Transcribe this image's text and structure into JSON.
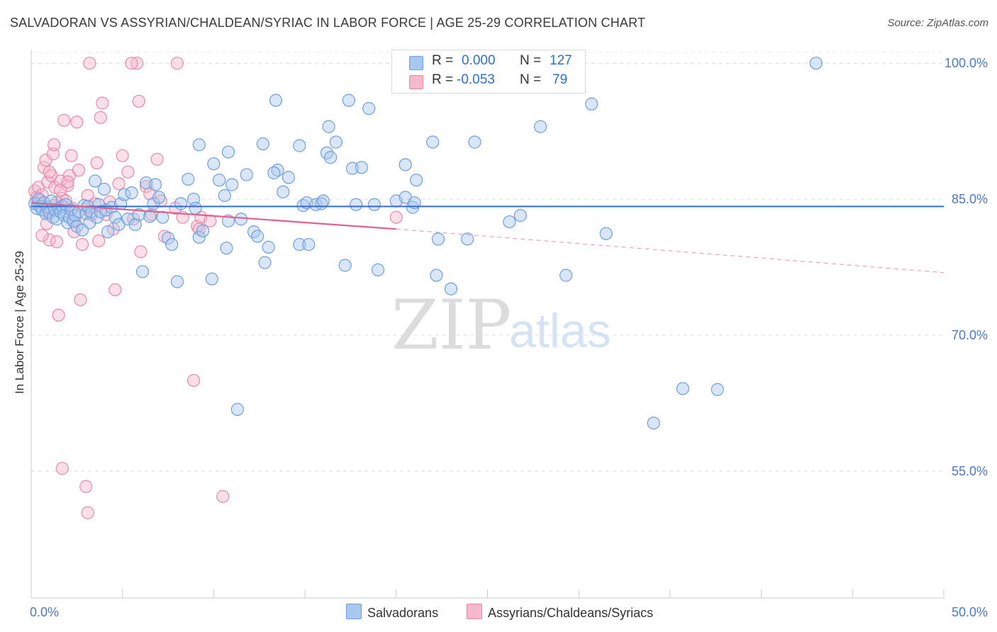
{
  "title": "SALVADORAN VS ASSYRIAN/CHALDEAN/SYRIAC IN LABOR FORCE | AGE 25-29 CORRELATION CHART",
  "source": "Source: ZipAtlas.com",
  "legend": {
    "blue_r_label": "R =",
    "blue_r_value": "0.000",
    "blue_n_label": "N =",
    "blue_n_value": "127",
    "pink_r_label": "R =",
    "pink_r_value": "-0.053",
    "pink_n_label": "N =",
    "pink_n_value": "79"
  },
  "bottom_legend": {
    "blue_label": "Salvadorans",
    "pink_label": "Assyrians/Chaldeans/Syriacs"
  },
  "colors": {
    "blue_fill": "#a8c8f0",
    "blue_stroke": "#6f9fdc",
    "blue_line": "#2f6fd0",
    "pink_fill": "#f6b8cb",
    "pink_stroke": "#e58aa8",
    "pink_line": "#e0628c",
    "tick_color": "#4a7bc8"
  },
  "watermark": {
    "zip": "ZIP",
    "atlas": "atlas"
  },
  "chart_data": {
    "type": "scatter",
    "title": "SALVADORAN VS ASSYRIAN/CHALDEAN/SYRIAC IN LABOR FORCE | AGE 25-29 CORRELATION CHART",
    "xlabel": "",
    "ylabel": "In Labor Force | Age 25-29",
    "xlim": [
      0,
      50
    ],
    "ylim": [
      41,
      101.5
    ],
    "x_tick_labels": [
      "0.0%",
      "50.0%"
    ],
    "y_ticks": [
      55,
      70,
      85,
      100
    ],
    "y_tick_labels": [
      "55.0%",
      "70.0%",
      "85.0%",
      "100.0%"
    ],
    "series": [
      {
        "name": "Salvadorans",
        "r": 0.0,
        "n": 127,
        "trend": {
          "x": [
            0,
            50
          ],
          "y": [
            84.2,
            84.2
          ]
        },
        "points": [
          [
            0.2,
            84.5
          ],
          [
            0.3,
            84.0
          ],
          [
            0.4,
            85.0
          ],
          [
            0.5,
            84.2
          ],
          [
            0.6,
            83.8
          ],
          [
            0.7,
            84.6
          ],
          [
            0.8,
            83.4
          ],
          [
            0.9,
            84.1
          ],
          [
            1.0,
            83.5
          ],
          [
            1.1,
            84.8
          ],
          [
            1.2,
            83.0
          ],
          [
            1.3,
            83.8
          ],
          [
            1.4,
            82.8
          ],
          [
            1.5,
            84.0
          ],
          [
            1.6,
            83.6
          ],
          [
            1.7,
            84.2
          ],
          [
            1.8,
            83.2
          ],
          [
            1.9,
            84.4
          ],
          [
            2.0,
            82.4
          ],
          [
            2.1,
            83.0
          ],
          [
            2.2,
            83.8
          ],
          [
            2.3,
            82.6
          ],
          [
            2.4,
            83.2
          ],
          [
            2.5,
            82.0
          ],
          [
            2.6,
            83.6
          ],
          [
            2.8,
            81.6
          ],
          [
            2.9,
            84.3
          ],
          [
            3.0,
            83.4
          ],
          [
            3.1,
            84.2
          ],
          [
            3.2,
            82.4
          ],
          [
            3.3,
            83.6
          ],
          [
            3.5,
            87.0
          ],
          [
            3.6,
            83.0
          ],
          [
            3.7,
            84.4
          ],
          [
            3.8,
            83.6
          ],
          [
            4.0,
            86.1
          ],
          [
            4.1,
            83.8
          ],
          [
            4.2,
            81.4
          ],
          [
            4.4,
            84.1
          ],
          [
            4.6,
            83.0
          ],
          [
            4.8,
            82.2
          ],
          [
            4.9,
            84.5
          ],
          [
            5.1,
            85.5
          ],
          [
            5.3,
            82.8
          ],
          [
            5.5,
            85.7
          ],
          [
            5.7,
            82.2
          ],
          [
            5.9,
            83.3
          ],
          [
            6.1,
            77.0
          ],
          [
            6.3,
            86.8
          ],
          [
            6.5,
            83.1
          ],
          [
            6.7,
            84.5
          ],
          [
            6.8,
            86.6
          ],
          [
            7.0,
            85.2
          ],
          [
            7.2,
            83.0
          ],
          [
            7.5,
            80.7
          ],
          [
            7.7,
            80.0
          ],
          [
            8.0,
            75.9
          ],
          [
            8.2,
            84.5
          ],
          [
            8.6,
            87.2
          ],
          [
            8.9,
            85.0
          ],
          [
            9.0,
            84.0
          ],
          [
            9.2,
            80.8
          ],
          [
            9.4,
            81.5
          ],
          [
            9.9,
            76.2
          ],
          [
            10.0,
            88.9
          ],
          [
            10.3,
            87.1
          ],
          [
            10.6,
            85.4
          ],
          [
            10.7,
            79.6
          ],
          [
            10.8,
            82.6
          ],
          [
            11.0,
            86.6
          ],
          [
            11.3,
            61.8
          ],
          [
            11.5,
            82.8
          ],
          [
            11.8,
            87.7
          ],
          [
            12.2,
            81.4
          ],
          [
            12.4,
            80.9
          ],
          [
            12.8,
            78.0
          ],
          [
            13.0,
            79.7
          ],
          [
            12.7,
            91.1
          ],
          [
            13.5,
            88.2
          ],
          [
            13.8,
            85.8
          ],
          [
            14.1,
            87.4
          ],
          [
            14.7,
            80.0
          ],
          [
            14.9,
            84.3
          ],
          [
            15.1,
            84.6
          ],
          [
            15.2,
            80.0
          ],
          [
            15.6,
            84.4
          ],
          [
            15.9,
            84.5
          ],
          [
            16.0,
            84.8
          ],
          [
            16.2,
            90.1
          ],
          [
            16.4,
            89.6
          ],
          [
            17.2,
            77.7
          ],
          [
            17.6,
            88.4
          ],
          [
            17.8,
            84.4
          ],
          [
            18.1,
            88.5
          ],
          [
            18.5,
            95.0
          ],
          [
            18.8,
            84.4
          ],
          [
            19.0,
            77.2
          ],
          [
            20.0,
            84.8
          ],
          [
            20.5,
            85.2
          ],
          [
            20.5,
            88.8
          ],
          [
            20.9,
            84.1
          ],
          [
            21.0,
            84.6
          ],
          [
            22.2,
            76.6
          ],
          [
            22.3,
            80.6
          ],
          [
            23.0,
            75.1
          ],
          [
            23.9,
            80.6
          ],
          [
            24.3,
            91.3
          ],
          [
            26.2,
            82.5
          ],
          [
            26.8,
            83.2
          ],
          [
            27.9,
            93.0
          ],
          [
            29.3,
            76.6
          ],
          [
            30.7,
            95.5
          ],
          [
            31.5,
            81.2
          ],
          [
            35.7,
            64.1
          ],
          [
            37.6,
            64.0
          ],
          [
            34.1,
            60.3
          ],
          [
            43.0,
            100.0
          ],
          [
            16.7,
            91.3
          ],
          [
            14.7,
            90.9
          ],
          [
            13.4,
            95.9
          ],
          [
            9.2,
            91.0
          ],
          [
            21.1,
            87.1
          ],
          [
            22.0,
            91.3
          ],
          [
            17.4,
            95.9
          ],
          [
            10.8,
            90.2
          ],
          [
            16.3,
            93.0
          ],
          [
            13.3,
            87.9
          ]
        ]
      },
      {
        "name": "Assyrians/Chaldeans/Syriacs",
        "r": -0.053,
        "n": 79,
        "trend": {
          "x": [
            0,
            20
          ],
          "y": [
            84.6,
            81.7
          ]
        },
        "trend_extended": {
          "x": [
            20,
            50
          ],
          "y": [
            81.7,
            76.9
          ]
        },
        "points": [
          [
            0.2,
            85.9
          ],
          [
            0.3,
            85.2
          ],
          [
            0.35,
            84.4
          ],
          [
            0.4,
            86.3
          ],
          [
            0.5,
            84.9
          ],
          [
            0.6,
            85.5
          ],
          [
            0.7,
            88.5
          ],
          [
            0.8,
            89.3
          ],
          [
            0.85,
            82.3
          ],
          [
            0.9,
            86.9
          ],
          [
            1.0,
            80.5
          ],
          [
            1.05,
            83.6
          ],
          [
            1.1,
            87.6
          ],
          [
            1.2,
            90.0
          ],
          [
            1.25,
            91.0
          ],
          [
            1.3,
            86.3
          ],
          [
            1.4,
            80.3
          ],
          [
            1.5,
            72.2
          ],
          [
            1.6,
            87.0
          ],
          [
            1.7,
            85.1
          ],
          [
            1.8,
            93.7
          ],
          [
            1.9,
            84.8
          ],
          [
            2.0,
            86.5
          ],
          [
            2.1,
            87.6
          ],
          [
            2.2,
            89.8
          ],
          [
            2.25,
            84.0
          ],
          [
            2.35,
            81.4
          ],
          [
            2.5,
            93.5
          ],
          [
            2.6,
            88.2
          ],
          [
            2.7,
            73.9
          ],
          [
            2.8,
            80.0
          ],
          [
            3.0,
            83.9
          ],
          [
            3.1,
            85.4
          ],
          [
            3.3,
            83.3
          ],
          [
            3.5,
            84.5
          ],
          [
            3.6,
            89.0
          ],
          [
            3.8,
            94.0
          ],
          [
            3.9,
            95.6
          ],
          [
            4.1,
            83.3
          ],
          [
            4.3,
            84.7
          ],
          [
            4.5,
            81.7
          ],
          [
            4.6,
            75.0
          ],
          [
            4.8,
            86.7
          ],
          [
            5.0,
            89.8
          ],
          [
            5.3,
            88.0
          ],
          [
            5.6,
            82.8
          ],
          [
            5.8,
            100.0
          ],
          [
            5.9,
            95.8
          ],
          [
            6.0,
            79.2
          ],
          [
            6.3,
            86.4
          ],
          [
            6.5,
            85.6
          ],
          [
            6.6,
            83.3
          ],
          [
            6.9,
            89.4
          ],
          [
            7.1,
            84.8
          ],
          [
            7.3,
            80.9
          ],
          [
            7.9,
            84.0
          ],
          [
            8.0,
            100.0
          ],
          [
            8.3,
            83.0
          ],
          [
            9.1,
            82.0
          ],
          [
            9.2,
            81.7
          ],
          [
            9.3,
            83.0
          ],
          [
            9.8,
            82.6
          ],
          [
            3.2,
            100.0
          ],
          [
            1.7,
            55.3
          ],
          [
            3.0,
            53.3
          ],
          [
            3.1,
            50.4
          ],
          [
            8.9,
            65.0
          ],
          [
            10.5,
            52.2
          ],
          [
            20.0,
            83.0
          ],
          [
            1.4,
            84.6
          ],
          [
            1.6,
            86.0
          ],
          [
            0.6,
            81.0
          ],
          [
            1.2,
            84.3
          ],
          [
            2.0,
            86.9
          ],
          [
            0.8,
            83.7
          ],
          [
            1.0,
            88.0
          ],
          [
            2.4,
            82.5
          ],
          [
            5.5,
            100.0
          ],
          [
            3.7,
            80.4
          ]
        ]
      }
    ]
  }
}
